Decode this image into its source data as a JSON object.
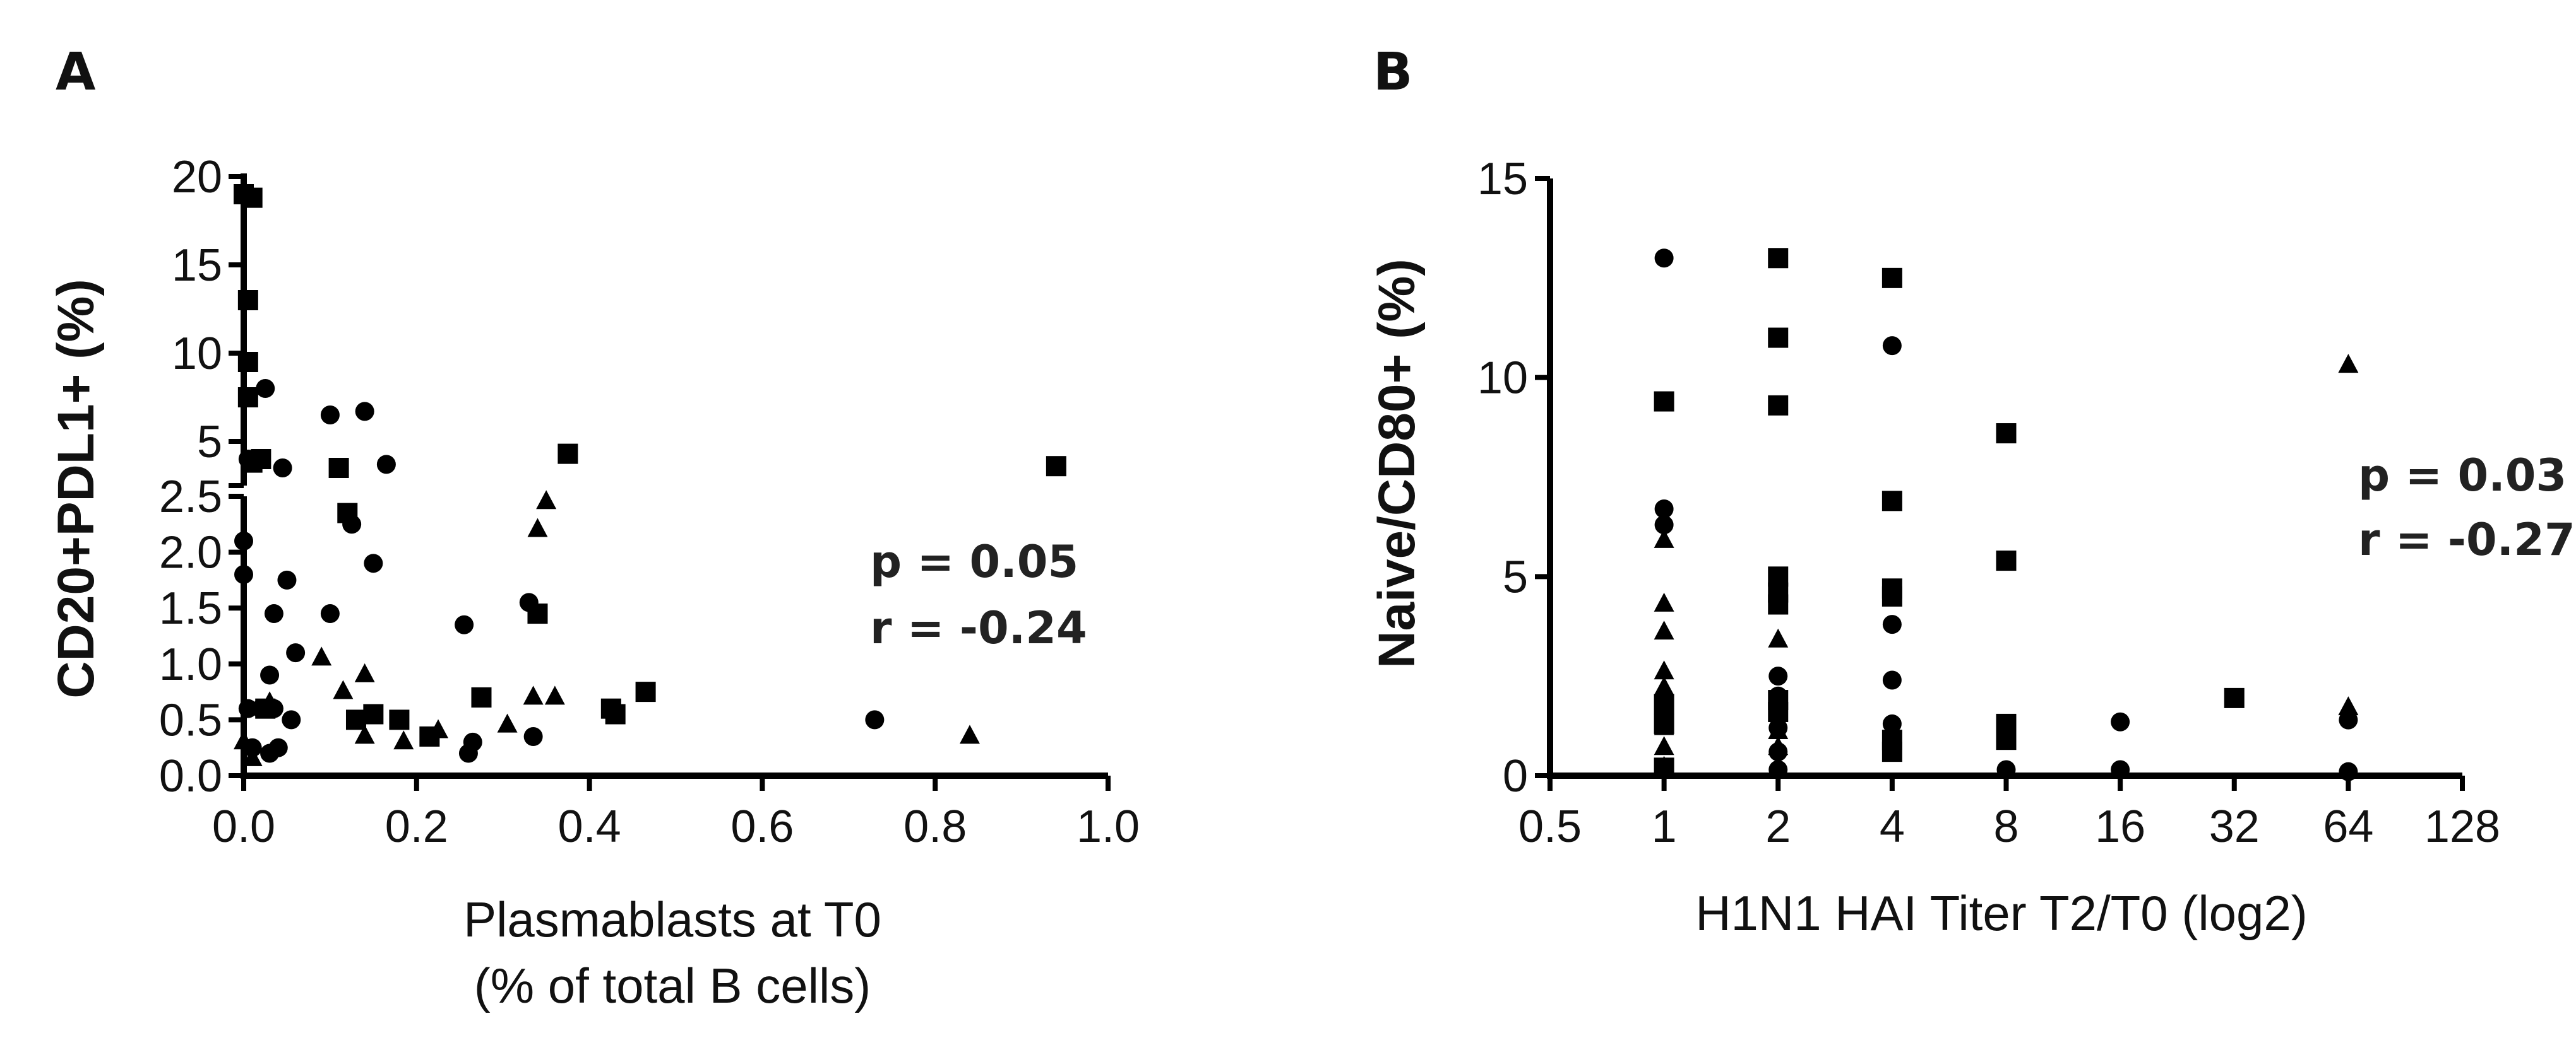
{
  "chart_data": [
    {
      "panel_label": "A",
      "type": "scatter",
      "xlabel_line1": "Plasmablasts at T0",
      "xlabel_line2": "(% of total B cells)",
      "ylabel": "CD20+PDL1+ (%)",
      "xlim": [
        0,
        1.0
      ],
      "x_ticks": [
        "0.0",
        "0.2",
        "0.4",
        "0.6",
        "0.8",
        "1.0"
      ],
      "ylim": [
        0,
        20
      ],
      "y_axis_break": true,
      "y_lower_segment": [
        0,
        2.5
      ],
      "y_upper_segment": [
        2.5,
        20
      ],
      "y_ticks": [
        "0.0",
        "0.5",
        "1.0",
        "1.5",
        "2.0",
        "2.5",
        "5",
        "10",
        "15",
        "20"
      ],
      "annotation": {
        "p": "p = 0.05",
        "r": "r = -0.24"
      },
      "grid": false,
      "series": [
        {
          "marker": "circle",
          "points": [
            [
              0.0,
              2.1
            ],
            [
              0.0,
              1.8
            ],
            [
              0.005,
              4.0
            ],
            [
              0.005,
              0.6
            ],
            [
              0.01,
              0.25
            ],
            [
              0.02,
              0.6
            ],
            [
              0.025,
              8.0
            ],
            [
              0.03,
              0.9
            ],
            [
              0.03,
              0.2
            ],
            [
              0.035,
              1.45
            ],
            [
              0.035,
              0.6
            ],
            [
              0.04,
              0.25
            ],
            [
              0.045,
              3.5
            ],
            [
              0.05,
              1.75
            ],
            [
              0.055,
              0.5
            ],
            [
              0.06,
              1.1
            ],
            [
              0.1,
              6.5
            ],
            [
              0.1,
              1.45
            ],
            [
              0.125,
              2.25
            ],
            [
              0.14,
              6.7
            ],
            [
              0.15,
              1.9
            ],
            [
              0.165,
              3.7
            ],
            [
              0.255,
              1.35
            ],
            [
              0.26,
              0.2
            ],
            [
              0.265,
              0.3
            ],
            [
              0.33,
              1.55
            ],
            [
              0.335,
              0.35
            ],
            [
              0.73,
              0.5
            ]
          ]
        },
        {
          "marker": "square",
          "points": [
            [
              0.0,
              19.0
            ],
            [
              0.005,
              13.0
            ],
            [
              0.005,
              9.5
            ],
            [
              0.005,
              7.5
            ],
            [
              0.01,
              18.8
            ],
            [
              0.01,
              3.8
            ],
            [
              0.02,
              4.0
            ],
            [
              0.025,
              0.6
            ],
            [
              0.11,
              3.5
            ],
            [
              0.12,
              2.35
            ],
            [
              0.13,
              0.5
            ],
            [
              0.15,
              0.55
            ],
            [
              0.18,
              0.5
            ],
            [
              0.215,
              0.35
            ],
            [
              0.275,
              0.7
            ],
            [
              0.34,
              1.45
            ],
            [
              0.375,
              4.3
            ],
            [
              0.425,
              0.6
            ],
            [
              0.43,
              0.55
            ],
            [
              0.465,
              0.75
            ],
            [
              0.94,
              3.6
            ]
          ]
        },
        {
          "marker": "triangle",
          "points": [
            [
              0.0,
              0.3
            ],
            [
              0.01,
              0.15
            ],
            [
              0.03,
              0.65
            ],
            [
              0.09,
              1.05
            ],
            [
              0.115,
              0.75
            ],
            [
              0.14,
              0.9
            ],
            [
              0.14,
              0.35
            ],
            [
              0.185,
              0.3
            ],
            [
              0.225,
              0.4
            ],
            [
              0.305,
              0.45
            ],
            [
              0.335,
              0.7
            ],
            [
              0.34,
              2.2
            ],
            [
              0.35,
              2.45
            ],
            [
              0.36,
              0.7
            ],
            [
              0.84,
              0.35
            ]
          ]
        }
      ]
    },
    {
      "panel_label": "B",
      "type": "scatter",
      "xlabel": "H1N1 HAI Titer T2/T0 (log2)",
      "ylabel": "Naive/CD80+ (%)",
      "x_scale": "log2",
      "x_ticks": [
        "0.5",
        "1",
        "2",
        "4",
        "8",
        "16",
        "32",
        "64",
        "128"
      ],
      "xlim": [
        0.5,
        128
      ],
      "ylim": [
        0,
        15
      ],
      "y_ticks": [
        "0",
        "5",
        "10",
        "15"
      ],
      "annotation": {
        "p": "p = 0.03",
        "r": "r = -0.27"
      },
      "grid": false,
      "series": [
        {
          "marker": "circle",
          "points": [
            [
              1,
              13.0
            ],
            [
              1,
              6.7
            ],
            [
              1,
              6.3
            ],
            [
              1,
              1.5
            ],
            [
              2,
              2.5
            ],
            [
              2,
              2.0
            ],
            [
              2,
              1.2
            ],
            [
              2,
              0.6
            ],
            [
              2,
              0.15
            ],
            [
              4,
              10.8
            ],
            [
              4,
              3.8
            ],
            [
              4,
              2.4
            ],
            [
              4,
              1.3
            ],
            [
              4,
              0.9
            ],
            [
              8,
              0.15
            ],
            [
              16,
              1.35
            ],
            [
              16,
              0.15
            ],
            [
              64,
              1.4
            ],
            [
              64,
              0.1
            ]
          ]
        },
        {
          "marker": "square",
          "points": [
            [
              1,
              9.4
            ],
            [
              1,
              1.8
            ],
            [
              1,
              1.3
            ],
            [
              1,
              0.2
            ],
            [
              2,
              13.0
            ],
            [
              2,
              11.0
            ],
            [
              2,
              9.3
            ],
            [
              2,
              5.0
            ],
            [
              2,
              4.6
            ],
            [
              2,
              4.3
            ],
            [
              2,
              1.9
            ],
            [
              2,
              1.6
            ],
            [
              4,
              12.5
            ],
            [
              4,
              6.9
            ],
            [
              4,
              4.7
            ],
            [
              4,
              4.5
            ],
            [
              4,
              0.9
            ],
            [
              4,
              0.6
            ],
            [
              8,
              8.6
            ],
            [
              8,
              5.4
            ],
            [
              8,
              1.3
            ],
            [
              8,
              0.9
            ],
            [
              32,
              1.95
            ]
          ]
        },
        {
          "marker": "triangle",
          "points": [
            [
              1,
              5.9
            ],
            [
              1,
              4.3
            ],
            [
              1,
              3.6
            ],
            [
              1,
              2.6
            ],
            [
              1,
              2.2
            ],
            [
              1,
              1.2
            ],
            [
              1,
              0.7
            ],
            [
              1,
              0.2
            ],
            [
              2,
              3.4
            ],
            [
              2,
              1.1
            ],
            [
              2,
              0.7
            ],
            [
              64,
              10.3
            ],
            [
              64,
              1.7
            ]
          ]
        }
      ]
    }
  ]
}
